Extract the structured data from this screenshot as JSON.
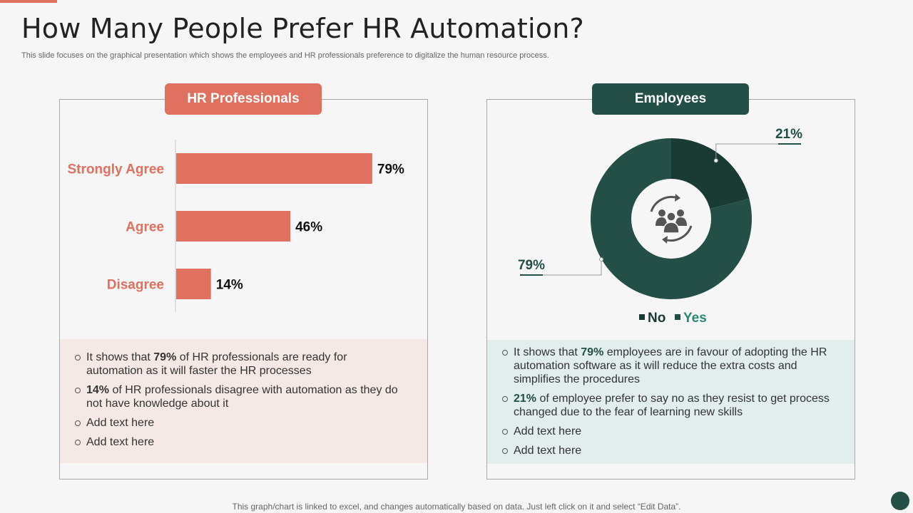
{
  "slide": {
    "title": "How Many People Prefer HR Automation?",
    "subtitle": "This slide focuses on the graphical presentation which shows the employees and HR professionals preference to digitalize the human resource process.",
    "footer": "This graph/chart is linked to excel,  and changes automatically based on data. Just left click on it and select “Edit Data”."
  },
  "colors": {
    "coral": "#e07060",
    "dark_green": "#234f46",
    "darker_green": "#1a3b34",
    "label_green": "#2a8a76"
  },
  "hr_panel": {
    "header": "HR Professionals",
    "notes": [
      {
        "pre": "It shows that ",
        "bold": "79%",
        "post": " of HR professionals are ready for automation as it will faster the HR processes"
      },
      {
        "pre": "",
        "bold": "14%",
        "post": " of HR professionals disagree with automation as they do not have knowledge about it"
      },
      {
        "pre": "Add text here",
        "bold": "",
        "post": ""
      },
      {
        "pre": "Add text here",
        "bold": "",
        "post": ""
      }
    ]
  },
  "emp_panel": {
    "header": "Employees",
    "center_icon": "people-cycle-icon",
    "notes": [
      {
        "pre": "It shows that ",
        "bold": "79%",
        "post": " employees are in favour of adopting the HR automation software as it will reduce the extra costs and simplifies the procedures"
      },
      {
        "pre": "",
        "bold": "21%",
        "post": " of employee prefer to say no as they resist to get process changed due to the fear of learning new skills"
      },
      {
        "pre": "Add text here",
        "bold": "",
        "post": ""
      },
      {
        "pre": "Add text here",
        "bold": "",
        "post": ""
      }
    ]
  },
  "chart_data": [
    {
      "type": "bar",
      "orientation": "horizontal",
      "categories": [
        "Strongly Agree",
        "Agree",
        "Disagree"
      ],
      "values": [
        79,
        46,
        14
      ],
      "value_labels": [
        "79%",
        "46%",
        "14%"
      ],
      "xlim": [
        0,
        100
      ],
      "grid": false
    },
    {
      "type": "pie",
      "donut": true,
      "labels": [
        "No",
        "Yes"
      ],
      "values": [
        21,
        79
      ],
      "value_labels": [
        "21%",
        "79%"
      ],
      "colors": [
        "#1a3b34",
        "#234f46"
      ],
      "legend": "bottom"
    }
  ]
}
